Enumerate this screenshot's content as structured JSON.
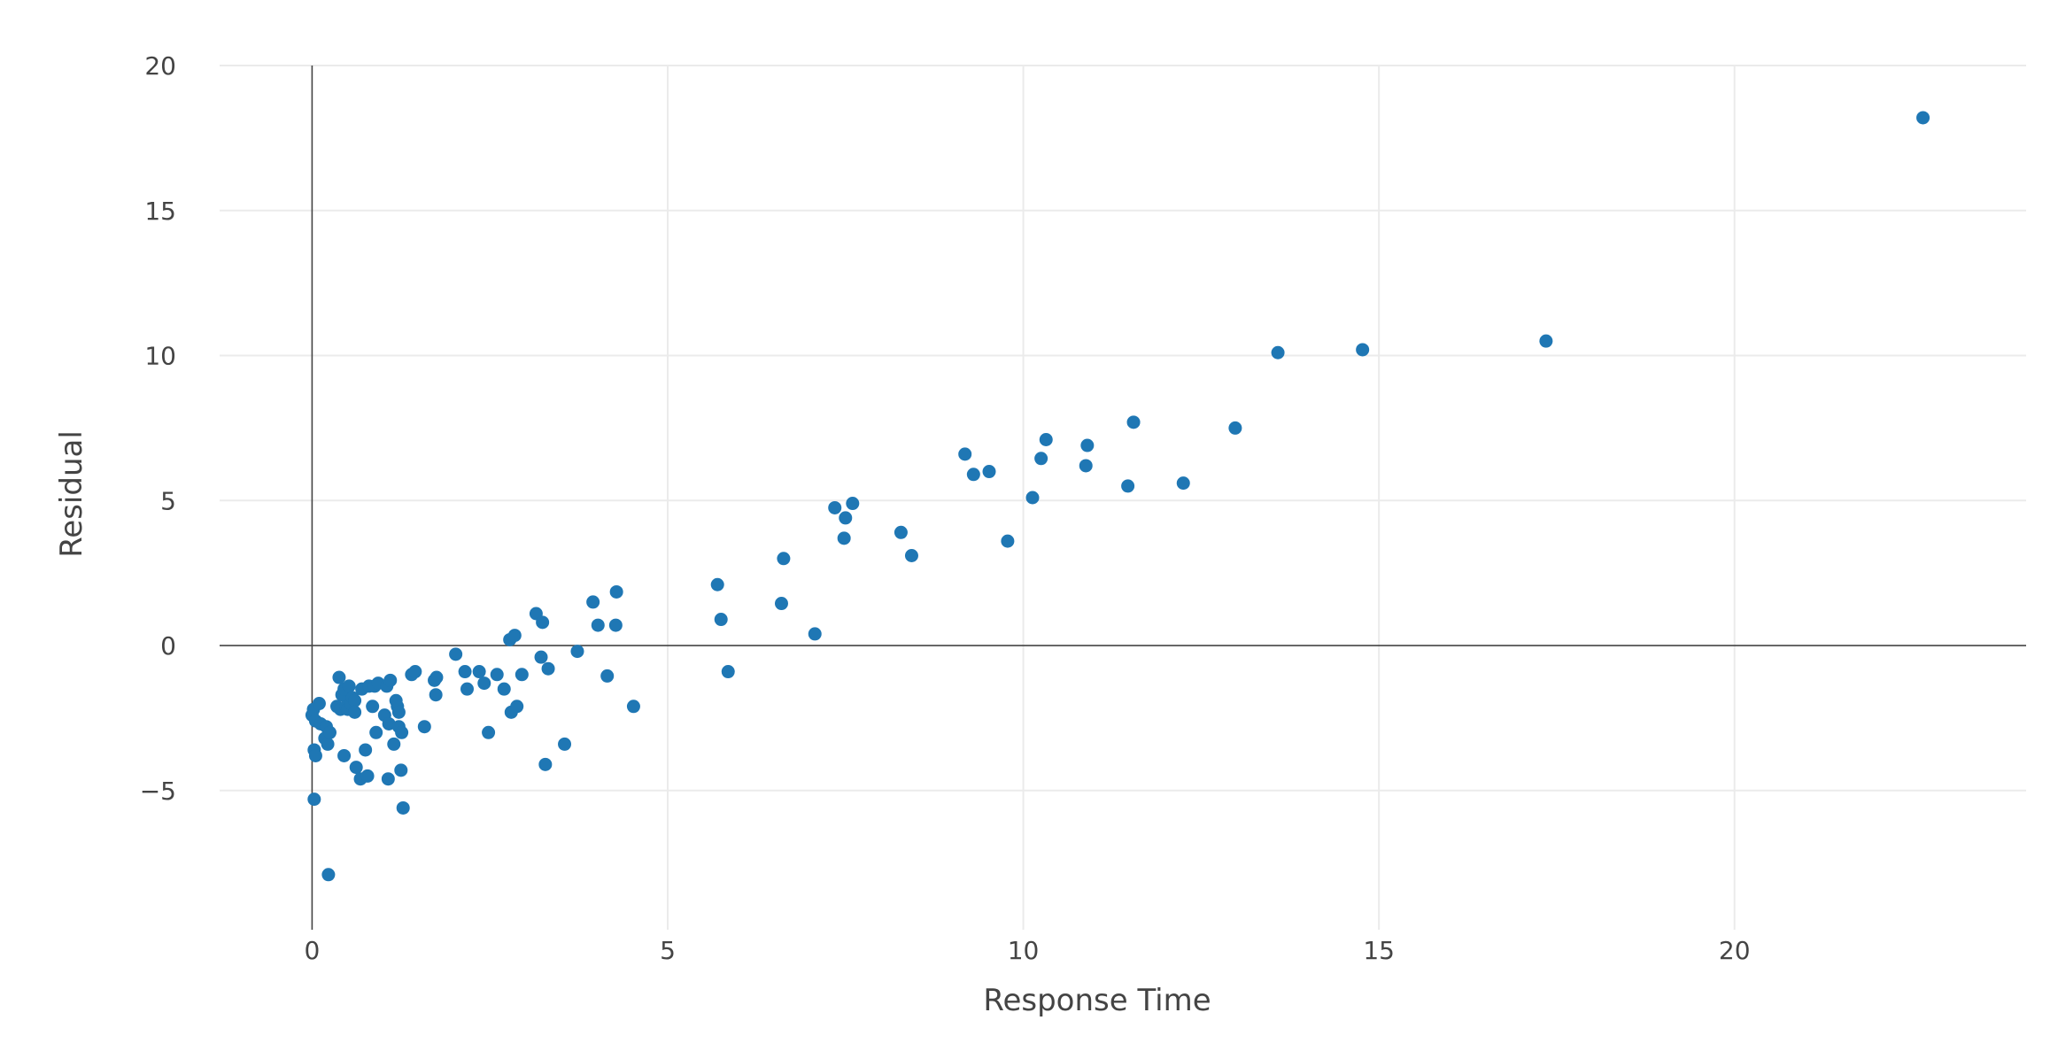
{
  "chart_data": {
    "type": "scatter",
    "title": "",
    "xlabel": "Response Time",
    "ylabel": "Residual",
    "xlim": [
      -1.3,
      24.1
    ],
    "ylim": [
      -9.8,
      20.0
    ],
    "x_ticks": [
      0,
      5,
      10,
      15,
      20
    ],
    "x_tick_labels": [
      "0",
      "5",
      "10",
      "15",
      "20"
    ],
    "y_ticks": [
      -5,
      0,
      5,
      10,
      15,
      20
    ],
    "y_tick_labels": [
      "−5",
      "0",
      "5",
      "10",
      "15",
      "20"
    ],
    "grid": true,
    "zero_lines": true,
    "marker_color": "#1f77b4",
    "gridline_color": "#ebebeb",
    "zeroline_color": "#444444",
    "points": [
      [
        0.0,
        -2.4
      ],
      [
        0.02,
        -2.2
      ],
      [
        0.05,
        -2.6
      ],
      [
        0.03,
        -3.6
      ],
      [
        0.05,
        -3.8
      ],
      [
        0.03,
        -5.3
      ],
      [
        0.1,
        -2.0
      ],
      [
        0.12,
        -2.7
      ],
      [
        0.18,
        -3.2
      ],
      [
        0.2,
        -2.8
      ],
      [
        0.22,
        -3.4
      ],
      [
        0.25,
        -3.0
      ],
      [
        0.23,
        -7.9
      ],
      [
        0.35,
        -2.1
      ],
      [
        0.38,
        -1.1
      ],
      [
        0.4,
        -2.2
      ],
      [
        0.42,
        -1.7
      ],
      [
        0.45,
        -1.5
      ],
      [
        0.45,
        -3.8
      ],
      [
        0.48,
        -2.1
      ],
      [
        0.5,
        -2.2
      ],
      [
        0.52,
        -1.4
      ],
      [
        0.55,
        -2.0
      ],
      [
        0.57,
        -1.8
      ],
      [
        0.6,
        -1.9
      ],
      [
        0.6,
        -2.3
      ],
      [
        0.62,
        -4.2
      ],
      [
        0.68,
        -4.6
      ],
      [
        0.7,
        -1.5
      ],
      [
        0.75,
        -3.6
      ],
      [
        0.78,
        -4.5
      ],
      [
        0.8,
        -1.4
      ],
      [
        0.85,
        -2.1
      ],
      [
        0.88,
        -1.4
      ],
      [
        0.9,
        -3.0
      ],
      [
        0.93,
        -1.3
      ],
      [
        1.02,
        -2.4
      ],
      [
        1.05,
        -1.4
      ],
      [
        1.07,
        -4.6
      ],
      [
        1.08,
        -2.7
      ],
      [
        1.1,
        -1.2
      ],
      [
        1.15,
        -3.4
      ],
      [
        1.18,
        -1.9
      ],
      [
        1.2,
        -2.1
      ],
      [
        1.22,
        -2.3
      ],
      [
        1.22,
        -2.8
      ],
      [
        1.25,
        -4.3
      ],
      [
        1.26,
        -3.0
      ],
      [
        1.28,
        -5.6
      ],
      [
        1.4,
        -1.0
      ],
      [
        1.45,
        -0.9
      ],
      [
        1.58,
        -2.8
      ],
      [
        1.72,
        -1.2
      ],
      [
        1.74,
        -1.7
      ],
      [
        1.75,
        -1.1
      ],
      [
        2.02,
        -0.3
      ],
      [
        2.15,
        -0.9
      ],
      [
        2.18,
        -1.5
      ],
      [
        2.35,
        -0.9
      ],
      [
        2.42,
        -1.3
      ],
      [
        2.48,
        -3.0
      ],
      [
        2.6,
        -1.0
      ],
      [
        2.7,
        -1.5
      ],
      [
        2.78,
        0.2
      ],
      [
        2.8,
        -2.3
      ],
      [
        2.85,
        0.35
      ],
      [
        2.88,
        -2.1
      ],
      [
        2.95,
        -1.0
      ],
      [
        3.15,
        1.1
      ],
      [
        3.22,
        -0.4
      ],
      [
        3.24,
        0.8
      ],
      [
        3.28,
        -4.1
      ],
      [
        3.32,
        -0.8
      ],
      [
        3.55,
        -3.4
      ],
      [
        3.73,
        -0.2
      ],
      [
        3.95,
        1.5
      ],
      [
        4.02,
        0.7
      ],
      [
        4.15,
        -1.05
      ],
      [
        4.27,
        0.7
      ],
      [
        4.28,
        1.85
      ],
      [
        4.52,
        -2.1
      ],
      [
        5.7,
        2.1
      ],
      [
        5.75,
        0.9
      ],
      [
        5.85,
        -0.9
      ],
      [
        6.6,
        1.45
      ],
      [
        6.63,
        3.0
      ],
      [
        7.07,
        0.4
      ],
      [
        7.35,
        4.75
      ],
      [
        7.48,
        3.7
      ],
      [
        7.5,
        4.4
      ],
      [
        7.6,
        4.9
      ],
      [
        8.28,
        3.9
      ],
      [
        8.43,
        3.1
      ],
      [
        9.18,
        6.6
      ],
      [
        9.3,
        5.9
      ],
      [
        9.52,
        6.0
      ],
      [
        9.78,
        3.6
      ],
      [
        10.13,
        5.1
      ],
      [
        10.25,
        6.45
      ],
      [
        10.32,
        7.1
      ],
      [
        10.88,
        6.2
      ],
      [
        10.9,
        6.9
      ],
      [
        11.47,
        5.5
      ],
      [
        11.55,
        7.7
      ],
      [
        12.25,
        5.6
      ],
      [
        12.98,
        7.5
      ],
      [
        13.58,
        10.1
      ],
      [
        14.77,
        10.2
      ],
      [
        17.35,
        10.5
      ],
      [
        22.65,
        18.2
      ]
    ]
  }
}
